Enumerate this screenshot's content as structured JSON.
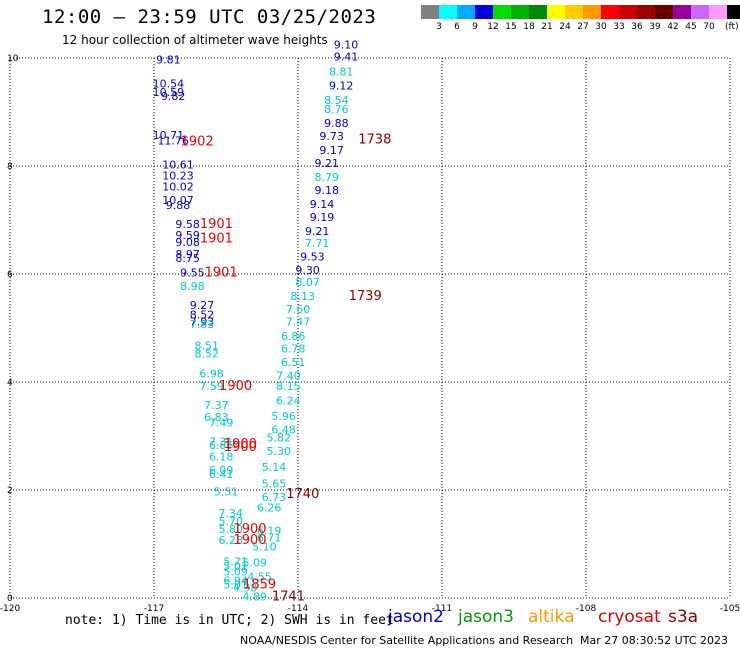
{
  "header": {
    "title": "12:00 – 23:59 UTC 03/25/2023",
    "subtitle": "12 hour collection of altimeter wave heights"
  },
  "colorbar": {
    "unit": "(ft)",
    "colors": [
      "#808080",
      "#00ffff",
      "#00aaff",
      "#0000dd",
      "#00dd00",
      "#00b000",
      "#008800",
      "#ffff00",
      "#ffcc00",
      "#ff9900",
      "#ff0000",
      "#cc0000",
      "#990000",
      "#660000",
      "#990099",
      "#cc66ff",
      "#ff99ff",
      "#000000"
    ],
    "labels": [
      "3",
      "6",
      "9",
      "12",
      "15",
      "18",
      "21",
      "24",
      "27",
      "30",
      "33",
      "36",
      "39",
      "42",
      "45",
      "70"
    ]
  },
  "footer": {
    "note": "note: 1) Time is in UTC; 2) SWH is in feet",
    "satellites": [
      {
        "name": "jason2",
        "color": "#0000cc"
      },
      {
        "name": "jason3",
        "color": "#009900"
      },
      {
        "name": "altika",
        "color": "#ff9900"
      },
      {
        "name": "cryosat",
        "color": "#dd0000"
      },
      {
        "name": "s3a",
        "color": "#880000"
      }
    ],
    "credit": "NOAA/NESDIS Center for Satellite Applications and Research",
    "timestamp": "Mar 27 08:30:52 UTC 2023"
  },
  "chart_data": {
    "type": "scatter",
    "title": "12:00 – 23:59 UTC 03/25/2023",
    "subtitle": "12 hour collection of altimeter wave heights",
    "xlim": [
      -120,
      -105
    ],
    "ylim": [
      0,
      10
    ],
    "x_ticks": [
      "-120",
      "-117",
      "-114",
      "-111",
      "-108",
      "-105"
    ],
    "x_tick_values": [
      -120,
      -117,
      -114,
      -111,
      -108,
      -105
    ],
    "y_ticks": [
      "0",
      "2",
      "4",
      "6",
      "8",
      "10"
    ],
    "y_tick_values": [
      0,
      2,
      4,
      6,
      8,
      10
    ],
    "grid": true,
    "colors": {
      "blue": "#0000cc",
      "cyan": "#00cccc",
      "red": "#ee0000",
      "darkred": "#880000"
    },
    "wave_heights": [
      {
        "x": -116.7,
        "y": 9.9,
        "v": "9.81",
        "c": "blue"
      },
      {
        "x": -116.7,
        "y": 9.45,
        "v": "10.54",
        "c": "blue"
      },
      {
        "x": -116.7,
        "y": 9.3,
        "v": "10.59",
        "c": "blue"
      },
      {
        "x": -116.6,
        "y": 9.22,
        "v": "9.82",
        "c": "blue"
      },
      {
        "x": -116.7,
        "y": 8.5,
        "v": "10.71",
        "c": "blue"
      },
      {
        "x": -116.6,
        "y": 8.4,
        "v": "11.76",
        "c": "blue"
      },
      {
        "x": -116.5,
        "y": 7.95,
        "v": "10.61",
        "c": "blue"
      },
      {
        "x": -116.5,
        "y": 7.75,
        "v": "10.23",
        "c": "blue"
      },
      {
        "x": -116.5,
        "y": 7.55,
        "v": "10.02",
        "c": "blue"
      },
      {
        "x": -116.5,
        "y": 7.3,
        "v": "10.07",
        "c": "blue"
      },
      {
        "x": -116.5,
        "y": 7.2,
        "v": "9.88",
        "c": "blue"
      },
      {
        "x": -116.3,
        "y": 6.85,
        "v": "9.58",
        "c": "blue"
      },
      {
        "x": -116.3,
        "y": 6.65,
        "v": "9.59",
        "c": "blue"
      },
      {
        "x": -116.3,
        "y": 6.52,
        "v": "9.08",
        "c": "blue"
      },
      {
        "x": -116.3,
        "y": 6.3,
        "v": "8.97",
        "c": "blue"
      },
      {
        "x": -116.3,
        "y": 6.22,
        "v": "8.75",
        "c": "blue"
      },
      {
        "x": -116.2,
        "y": 5.95,
        "v": "9.55",
        "c": "blue"
      },
      {
        "x": -116.2,
        "y": 5.7,
        "v": "8.98",
        "c": "cyan"
      },
      {
        "x": -116.0,
        "y": 5.35,
        "v": "9.27",
        "c": "blue"
      },
      {
        "x": -116.0,
        "y": 5.18,
        "v": "8.52",
        "c": "blue"
      },
      {
        "x": -116.0,
        "y": 5.05,
        "v": "7.93",
        "c": "blue"
      },
      {
        "x": -116.0,
        "y": 5.0,
        "v": "7.83",
        "c": "cyan"
      },
      {
        "x": -115.9,
        "y": 4.6,
        "v": "8.51",
        "c": "cyan"
      },
      {
        "x": -115.9,
        "y": 4.45,
        "v": "8.52",
        "c": "cyan"
      },
      {
        "x": -115.8,
        "y": 4.08,
        "v": "6.98",
        "c": "cyan"
      },
      {
        "x": -115.8,
        "y": 3.85,
        "v": "7.59",
        "c": "cyan"
      },
      {
        "x": -115.7,
        "y": 3.5,
        "v": "7.37",
        "c": "cyan"
      },
      {
        "x": -115.7,
        "y": 3.28,
        "v": "6.83",
        "c": "cyan"
      },
      {
        "x": -115.6,
        "y": 3.18,
        "v": "7.49",
        "c": "cyan"
      },
      {
        "x": -115.6,
        "y": 2.82,
        "v": "7.31",
        "c": "cyan"
      },
      {
        "x": -115.6,
        "y": 2.76,
        "v": "6.86",
        "c": "cyan"
      },
      {
        "x": -115.6,
        "y": 2.55,
        "v": "6.18",
        "c": "cyan"
      },
      {
        "x": -115.6,
        "y": 2.3,
        "v": "6.09",
        "c": "cyan"
      },
      {
        "x": -115.6,
        "y": 2.22,
        "v": "6.41",
        "c": "cyan"
      },
      {
        "x": -115.5,
        "y": 1.9,
        "v": "5.51",
        "c": "cyan"
      },
      {
        "x": -115.4,
        "y": 1.5,
        "v": "7.34",
        "c": "cyan"
      },
      {
        "x": -115.4,
        "y": 1.35,
        "v": "5.70",
        "c": "cyan"
      },
      {
        "x": -115.4,
        "y": 1.2,
        "v": "5.80",
        "c": "cyan"
      },
      {
        "x": -115.4,
        "y": 1.0,
        "v": "6.28",
        "c": "cyan"
      },
      {
        "x": -115.3,
        "y": 0.6,
        "v": "5.71",
        "c": "cyan"
      },
      {
        "x": -115.3,
        "y": 0.52,
        "v": "5.01",
        "c": "cyan"
      },
      {
        "x": -115.3,
        "y": 0.42,
        "v": "5.09",
        "c": "cyan"
      },
      {
        "x": -115.3,
        "y": 0.25,
        "v": "6.94",
        "c": "cyan"
      },
      {
        "x": -115.3,
        "y": 0.18,
        "v": "5.01",
        "c": "cyan"
      },
      {
        "x": -115.1,
        "y": 0.12,
        "v": "4.98",
        "c": "cyan"
      },
      {
        "x": -114.9,
        "y": -0.05,
        "v": "4.89",
        "c": "cyan"
      },
      {
        "x": -114.9,
        "y": 0.58,
        "v": "5.09",
        "c": "cyan"
      },
      {
        "x": -114.8,
        "y": 0.32,
        "v": "4.55",
        "c": "cyan"
      },
      {
        "x": -114.7,
        "y": 0.88,
        "v": "5.10",
        "c": "cyan"
      },
      {
        "x": -114.6,
        "y": 1.18,
        "v": "6.19",
        "c": "cyan"
      },
      {
        "x": -114.6,
        "y": 1.05,
        "v": "6.71",
        "c": "cyan"
      },
      {
        "x": -114.6,
        "y": 1.6,
        "v": "6.26",
        "c": "cyan"
      },
      {
        "x": -114.5,
        "y": 1.8,
        "v": "6.73",
        "c": "cyan"
      },
      {
        "x": -114.5,
        "y": 2.05,
        "v": "5.65",
        "c": "cyan"
      },
      {
        "x": -114.5,
        "y": 2.35,
        "v": "5.14",
        "c": "cyan"
      },
      {
        "x": -114.4,
        "y": 2.65,
        "v": "5.30",
        "c": "cyan"
      },
      {
        "x": -114.4,
        "y": 2.9,
        "v": "5.82",
        "c": "cyan"
      },
      {
        "x": -114.3,
        "y": 3.05,
        "v": "6.48",
        "c": "cyan"
      },
      {
        "x": -114.3,
        "y": 3.3,
        "v": "5.96",
        "c": "cyan"
      },
      {
        "x": -114.2,
        "y": 3.58,
        "v": "6.24",
        "c": "cyan"
      },
      {
        "x": -114.2,
        "y": 3.85,
        "v": "8.15",
        "c": "cyan"
      },
      {
        "x": -114.2,
        "y": 4.05,
        "v": "7.40",
        "c": "cyan"
      },
      {
        "x": -114.1,
        "y": 4.3,
        "v": "6.51",
        "c": "cyan"
      },
      {
        "x": -114.1,
        "y": 4.55,
        "v": "6.78",
        "c": "cyan"
      },
      {
        "x": -114.1,
        "y": 4.78,
        "v": "6.86",
        "c": "cyan"
      },
      {
        "x": -114.0,
        "y": 5.05,
        "v": "7.47",
        "c": "cyan"
      },
      {
        "x": -114.0,
        "y": 5.28,
        "v": "7.60",
        "c": "cyan"
      },
      {
        "x": -113.9,
        "y": 5.52,
        "v": "8.13",
        "c": "cyan"
      },
      {
        "x": -113.8,
        "y": 5.78,
        "v": "8.07",
        "c": "cyan"
      },
      {
        "x": -113.8,
        "y": 6.0,
        "v": "9.30",
        "c": "blue"
      },
      {
        "x": -113.7,
        "y": 6.25,
        "v": "9.53",
        "c": "blue"
      },
      {
        "x": -113.6,
        "y": 6.5,
        "v": "7.71",
        "c": "cyan"
      },
      {
        "x": -113.6,
        "y": 6.72,
        "v": "9.21",
        "c": "blue"
      },
      {
        "x": -113.5,
        "y": 6.98,
        "v": "9.19",
        "c": "blue"
      },
      {
        "x": -113.5,
        "y": 7.22,
        "v": "9.14",
        "c": "blue"
      },
      {
        "x": -113.4,
        "y": 7.48,
        "v": "9.18",
        "c": "blue"
      },
      {
        "x": -113.4,
        "y": 7.72,
        "v": "8.79",
        "c": "cyan"
      },
      {
        "x": -113.4,
        "y": 7.98,
        "v": "9.21",
        "c": "blue"
      },
      {
        "x": -113.3,
        "y": 8.22,
        "v": "9.17",
        "c": "blue"
      },
      {
        "x": -113.3,
        "y": 8.48,
        "v": "9.73",
        "c": "blue"
      },
      {
        "x": -113.2,
        "y": 8.72,
        "v": "9.88",
        "c": "blue"
      },
      {
        "x": -113.2,
        "y": 8.98,
        "v": "8.76",
        "c": "cyan"
      },
      {
        "x": -113.2,
        "y": 9.15,
        "v": "8.54",
        "c": "cyan"
      },
      {
        "x": -113.1,
        "y": 9.42,
        "v": "9.12",
        "c": "blue"
      },
      {
        "x": -113.1,
        "y": 9.68,
        "v": "8.81",
        "c": "cyan"
      },
      {
        "x": -113.0,
        "y": 9.95,
        "v": "9.41",
        "c": "blue"
      },
      {
        "x": -113.0,
        "y": 10.18,
        "v": "9.10",
        "c": "blue"
      }
    ],
    "pass_times": [
      {
        "x": -116.1,
        "y": 8.38,
        "v": "1902",
        "c": "red"
      },
      {
        "x": -115.7,
        "y": 6.85,
        "v": "1901",
        "c": "red"
      },
      {
        "x": -115.7,
        "y": 6.58,
        "v": "1901",
        "c": "red"
      },
      {
        "x": -115.6,
        "y": 5.95,
        "v": "1901",
        "c": "red"
      },
      {
        "x": -115.3,
        "y": 3.85,
        "v": "1900",
        "c": "red"
      },
      {
        "x": -115.2,
        "y": 2.78,
        "v": "1900",
        "c": "red"
      },
      {
        "x": -115.2,
        "y": 2.72,
        "v": "1900",
        "c": "red"
      },
      {
        "x": -115.0,
        "y": 1.2,
        "v": "1900",
        "c": "red"
      },
      {
        "x": -115.0,
        "y": 1.0,
        "v": "1900",
        "c": "red"
      },
      {
        "x": -114.8,
        "y": 0.18,
        "v": "1859",
        "c": "red"
      },
      {
        "x": -114.2,
        "y": -0.05,
        "v": "1741",
        "c": "darkred"
      },
      {
        "x": -113.9,
        "y": 1.85,
        "v": "1740",
        "c": "darkred"
      },
      {
        "x": -112.6,
        "y": 5.52,
        "v": "1739",
        "c": "darkred"
      },
      {
        "x": -112.4,
        "y": 8.42,
        "v": "1738",
        "c": "darkred"
      }
    ]
  }
}
